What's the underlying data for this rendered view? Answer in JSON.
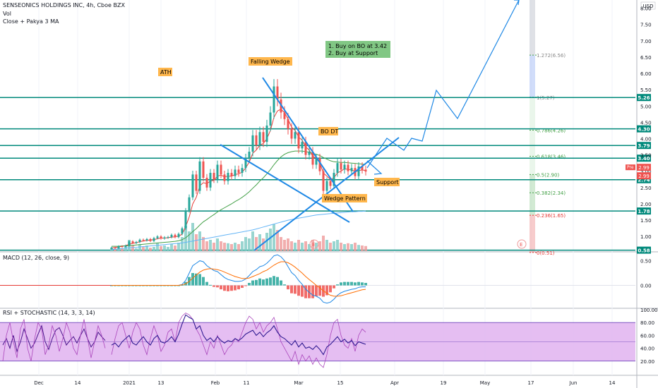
{
  "header": {
    "title": "SENSEONICS HOLDINGS INC, 4h, Cboe BZX",
    "vol_label": "Vol",
    "ma_label": "Close + Pakya 3 MA"
  },
  "currency": "USD",
  "colors": {
    "up": "#26a69a",
    "down": "#ef5350",
    "level_line": "#00897b",
    "wedge": "#1e88e5",
    "ma_red": "#e53935",
    "ma_green": "#43a047",
    "ma_blue": "#64b5f6",
    "label_orange": "#ffb74d",
    "label_green": "#81c784",
    "stoch_fill": "#e1b3f0",
    "fib_red": "#ef9a9a",
    "fib_green": "#a5d6a7",
    "fib_blue": "#b3c7f7"
  },
  "chart_data": [
    {
      "type": "candlestick",
      "title": "SENSEONICS HOLDINGS INC, 4h, Cboe BZX",
      "y_ticks": [
        "8.00",
        "7.50",
        "7.00",
        "6.50",
        "6.00",
        "5.50",
        "5.00",
        "4.50",
        "4.00",
        "3.50",
        "3.00",
        "2.50",
        "2.00",
        "1.50",
        "1.00"
      ],
      "ylim": [
        0.55,
        8.25
      ],
      "x_ticks": [
        "Dec",
        "14",
        "2021",
        "13",
        "Feb",
        "11",
        "Mar",
        "15",
        "Apr",
        "19",
        "May",
        "17",
        "Jun",
        "14"
      ],
      "horizontal_levels": [
        5.26,
        4.3,
        3.79,
        3.4,
        2.74,
        1.78,
        0.58
      ],
      "price_marks": [
        {
          "label": "Pre",
          "value": 2.99
        },
        {
          "label": "2.99",
          "value": 2.99
        },
        {
          "label": "3.40",
          "value": 3.4
        }
      ],
      "fibonacci": [
        {
          "label": "1.272(6.56)",
          "value": 6.56
        },
        {
          "label": "1(5.27)",
          "value": 5.27
        },
        {
          "label": "0.786(4.26)",
          "value": 4.26
        },
        {
          "label": "0.618(3.46)",
          "value": 3.46
        },
        {
          "label": "0.5(2.90)",
          "value": 2.9
        },
        {
          "label": "0.382(2.34)",
          "value": 2.34
        },
        {
          "label": "0.236(1.65)",
          "value": 1.65
        },
        {
          "label": "0(0.51)",
          "value": 0.51
        }
      ],
      "annotations": [
        "ATH",
        "Falling Wedge",
        "BO DT",
        "Wedge Pattern",
        "Support",
        "1. Buy on BO at 3.42",
        "2. Buy at Support"
      ],
      "candles": [
        [
          0.62,
          0.66
        ],
        [
          0.66,
          0.64
        ],
        [
          0.64,
          0.7
        ],
        [
          0.7,
          0.68
        ],
        [
          0.68,
          0.72
        ],
        [
          0.72,
          0.85
        ],
        [
          0.85,
          0.8
        ],
        [
          0.8,
          0.83
        ],
        [
          0.83,
          0.9
        ],
        [
          0.9,
          0.88
        ],
        [
          0.88,
          0.92
        ],
        [
          0.92,
          0.86
        ],
        [
          0.86,
          0.95
        ],
        [
          0.95,
          1.0
        ],
        [
          1.0,
          0.94
        ],
        [
          0.94,
          0.97
        ],
        [
          0.97,
          0.98
        ],
        [
          0.98,
          1.05
        ],
        [
          1.05,
          0.98
        ],
        [
          0.98,
          1.08
        ],
        [
          1.08,
          1.25
        ],
        [
          1.25,
          1.8
        ],
        [
          1.8,
          2.2
        ],
        [
          2.2,
          2.9
        ],
        [
          2.9,
          2.4
        ],
        [
          2.4,
          3.3
        ],
        [
          3.3,
          2.8
        ],
        [
          2.8,
          2.5
        ],
        [
          2.5,
          2.95
        ],
        [
          2.95,
          2.75
        ],
        [
          2.75,
          3.2
        ],
        [
          3.2,
          2.9
        ],
        [
          2.9,
          2.7
        ],
        [
          2.7,
          2.95
        ],
        [
          2.95,
          2.85
        ],
        [
          2.85,
          3.05
        ],
        [
          3.05,
          2.95
        ],
        [
          2.95,
          3.1
        ],
        [
          3.1,
          3.4
        ],
        [
          3.4,
          3.6
        ],
        [
          3.6,
          4.1
        ],
        [
          4.1,
          3.8
        ],
        [
          3.8,
          4.2
        ],
        [
          4.2,
          3.9
        ],
        [
          3.9,
          4.4
        ],
        [
          4.4,
          4.8
        ],
        [
          4.8,
          5.6
        ],
        [
          5.6,
          5.2
        ],
        [
          5.2,
          4.8
        ],
        [
          4.8,
          4.6
        ],
        [
          4.6,
          4.3
        ],
        [
          4.3,
          4.0
        ],
        [
          4.0,
          4.2
        ],
        [
          4.2,
          3.7
        ],
        [
          3.7,
          3.9
        ],
        [
          3.9,
          3.5
        ],
        [
          3.5,
          3.6
        ],
        [
          3.6,
          3.2
        ],
        [
          3.2,
          3.4
        ],
        [
          3.4,
          3.0
        ],
        [
          3.0,
          2.4
        ],
        [
          2.4,
          2.7
        ],
        [
          2.7,
          2.55
        ],
        [
          2.55,
          2.95
        ],
        [
          2.95,
          3.25
        ],
        [
          3.25,
          3.05
        ],
        [
          3.05,
          3.2
        ],
        [
          3.2,
          3.0
        ],
        [
          3.0,
          3.1
        ],
        [
          3.1,
          2.85
        ],
        [
          2.85,
          3.15
        ],
        [
          3.15,
          3.05
        ],
        [
          3.05,
          2.99
        ]
      ],
      "moving_averages": [
        {
          "color": "red",
          "values": [
            0.65,
            0.66,
            0.68,
            0.7,
            0.72,
            0.76,
            0.79,
            0.81,
            0.84,
            0.86,
            0.88,
            0.89,
            0.9,
            0.93,
            0.95,
            0.95,
            0.96,
            0.98,
            0.99,
            1.01,
            1.07,
            1.3,
            1.6,
            2.0,
            2.2,
            2.55,
            2.65,
            2.62,
            2.7,
            2.72,
            2.85,
            2.88,
            2.83,
            2.85,
            2.85,
            2.9,
            2.92,
            2.97,
            3.1,
            3.28,
            3.55,
            3.65,
            3.8,
            3.85,
            4.0,
            4.25,
            4.65,
            4.85,
            4.9,
            4.8,
            4.6,
            4.35,
            4.25,
            4.05,
            3.95,
            3.75,
            3.65,
            3.45,
            3.4,
            3.25,
            2.95,
            2.85,
            2.75,
            2.8,
            2.95,
            3.0,
            3.08,
            3.05,
            3.05,
            2.98,
            3.02,
            3.04,
            3.02
          ]
        },
        {
          "color": "green",
          "values": [
            0.7,
            0.7,
            0.7,
            0.71,
            0.71,
            0.72,
            0.73,
            0.74,
            0.75,
            0.76,
            0.77,
            0.78,
            0.79,
            0.8,
            0.81,
            0.82,
            0.83,
            0.84,
            0.85,
            0.87,
            0.9,
            0.96,
            1.05,
            1.15,
            1.24,
            1.35,
            1.45,
            1.52,
            1.6,
            1.67,
            1.75,
            1.82,
            1.88,
            1.94,
            2.0,
            2.07,
            2.13,
            2.2,
            2.28,
            2.37,
            2.48,
            2.58,
            2.7,
            2.8,
            2.92,
            3.05,
            3.2,
            3.33,
            3.44,
            3.52,
            3.57,
            3.6,
            3.62,
            3.62,
            3.62,
            3.6,
            3.58,
            3.55,
            3.52,
            3.48,
            3.42,
            3.37,
            3.32,
            3.29,
            3.28,
            3.27,
            3.27,
            3.26,
            3.25,
            3.24,
            3.23,
            3.22,
            3.21
          ]
        },
        {
          "color": "blue",
          "values": [
            0.6,
            0.61,
            0.62,
            0.63,
            0.64,
            0.65,
            0.66,
            0.67,
            0.68,
            0.69,
            0.7,
            0.71,
            0.72,
            0.73,
            0.74,
            0.75,
            0.76,
            0.77,
            0.78,
            0.79,
            0.8,
            0.82,
            0.84,
            0.86,
            0.88,
            0.9,
            0.92,
            0.94,
            0.96,
            0.98,
            1.0,
            1.02,
            1.04,
            1.06,
            1.08,
            1.1,
            1.12,
            1.14,
            1.16,
            1.18,
            1.2,
            1.23,
            1.26,
            1.29,
            1.32,
            1.35,
            1.38,
            1.41,
            1.44,
            1.47,
            1.5,
            1.52,
            1.54,
            1.56,
            1.58,
            1.6,
            1.62,
            1.64,
            1.66,
            1.67,
            1.68,
            1.69,
            1.7,
            1.71,
            1.72,
            1.73,
            1.74,
            1.75,
            1.76,
            1.76,
            1.77,
            1.77,
            1.78
          ]
        }
      ],
      "volume": [
        0.1,
        0.08,
        0.12,
        0.1,
        0.15,
        0.4,
        0.2,
        0.1,
        0.25,
        0.15,
        0.2,
        0.12,
        0.15,
        0.3,
        0.18,
        0.2,
        0.15,
        0.25,
        0.2,
        0.3,
        0.5,
        0.9,
        0.7,
        1.0,
        0.6,
        0.7,
        0.5,
        0.35,
        0.4,
        0.3,
        0.45,
        0.35,
        0.3,
        0.28,
        0.25,
        0.3,
        0.25,
        0.35,
        0.5,
        0.45,
        0.7,
        0.5,
        0.6,
        0.45,
        0.65,
        0.8,
        0.95,
        0.75,
        0.5,
        0.4,
        0.45,
        0.35,
        0.3,
        0.4,
        0.3,
        0.35,
        0.25,
        0.4,
        0.3,
        0.35,
        0.55,
        0.4,
        0.3,
        0.35,
        0.4,
        0.3,
        0.25,
        0.28,
        0.25,
        0.3,
        0.22,
        0.2,
        0.18
      ]
    },
    {
      "type": "line",
      "title": "MACD (12, 26, close, 9)",
      "y_ticks": [
        "0.50",
        "0.00"
      ],
      "ylim": [
        -0.45,
        0.68
      ],
      "series": [
        {
          "name": "MACD",
          "values": [
            0,
            0,
            0,
            0,
            0,
            0,
            0,
            0,
            0,
            0,
            0,
            0,
            0,
            0,
            0,
            0,
            0,
            0,
            0,
            0,
            0.02,
            0.1,
            0.25,
            0.4,
            0.45,
            0.5,
            0.48,
            0.4,
            0.35,
            0.3,
            0.28,
            0.22,
            0.16,
            0.12,
            0.1,
            0.08,
            0.08,
            0.09,
            0.13,
            0.2,
            0.28,
            0.32,
            0.38,
            0.4,
            0.45,
            0.52,
            0.6,
            0.62,
            0.58,
            0.5,
            0.38,
            0.26,
            0.2,
            0.1,
            0.02,
            -0.08,
            -0.14,
            -0.2,
            -0.22,
            -0.26,
            -0.34,
            -0.36,
            -0.34,
            -0.28,
            -0.2,
            -0.15,
            -0.12,
            -0.1,
            -0.08,
            -0.07,
            -0.04,
            -0.03,
            -0.03
          ]
        },
        {
          "name": "Signal",
          "values": [
            0,
            0,
            0,
            0,
            0,
            0,
            0,
            0,
            0,
            0,
            0,
            0,
            0,
            0,
            0,
            0,
            0,
            0,
            0,
            0,
            0.01,
            0.03,
            0.08,
            0.15,
            0.21,
            0.27,
            0.31,
            0.33,
            0.34,
            0.33,
            0.32,
            0.3,
            0.27,
            0.24,
            0.21,
            0.18,
            0.16,
            0.14,
            0.14,
            0.15,
            0.18,
            0.21,
            0.24,
            0.28,
            0.31,
            0.36,
            0.41,
            0.45,
            0.48,
            0.48,
            0.46,
            0.42,
            0.37,
            0.31,
            0.25,
            0.18,
            0.12,
            0.06,
            0.0,
            -0.05,
            -0.11,
            -0.16,
            -0.2,
            -0.22,
            -0.22,
            -0.21,
            -0.19,
            -0.17,
            -0.15,
            -0.13,
            -0.11,
            -0.09,
            -0.08
          ]
        }
      ]
    },
    {
      "type": "line",
      "title": "RSI + STOCHASTIC (14, 3, 3, 14)",
      "y_ticks": [
        "100.00",
        "80.00",
        "60.00",
        "40.00",
        "20.00"
      ],
      "ylim": [
        0,
        100
      ],
      "band": [
        20,
        80
      ],
      "series": [
        {
          "name": "RSI",
          "values": [
            45,
            48,
            42,
            50,
            55,
            60,
            48,
            45,
            52,
            58,
            50,
            45,
            55,
            60,
            50,
            48,
            52,
            58,
            50,
            62,
            78,
            92,
            88,
            85,
            70,
            75,
            60,
            52,
            56,
            50,
            58,
            52,
            48,
            52,
            50,
            55,
            52,
            56,
            62,
            65,
            68,
            60,
            65,
            58,
            64,
            68,
            75,
            65,
            58,
            55,
            50,
            45,
            52,
            42,
            48,
            40,
            42,
            38,
            44,
            38,
            30,
            42,
            46,
            52,
            58,
            50,
            54,
            48,
            52,
            44,
            50,
            48,
            46
          ]
        },
        {
          "name": "Stoch K",
          "values": [
            30,
            55,
            75,
            80,
            60,
            40,
            65,
            80,
            70,
            45,
            30,
            55,
            75,
            60,
            35,
            45,
            65,
            70,
            50,
            80,
            90,
            95,
            92,
            85,
            70,
            60,
            45,
            30,
            50,
            40,
            60,
            45,
            30,
            40,
            45,
            55,
            50,
            65,
            80,
            90,
            85,
            70,
            80,
            65,
            75,
            80,
            88,
            70,
            50,
            40,
            30,
            20,
            35,
            15,
            30,
            20,
            28,
            15,
            25,
            15,
            10,
            30,
            60,
            80,
            85,
            60,
            45,
            40,
            55,
            35,
            60,
            70,
            65
          ]
        }
      ]
    }
  ]
}
